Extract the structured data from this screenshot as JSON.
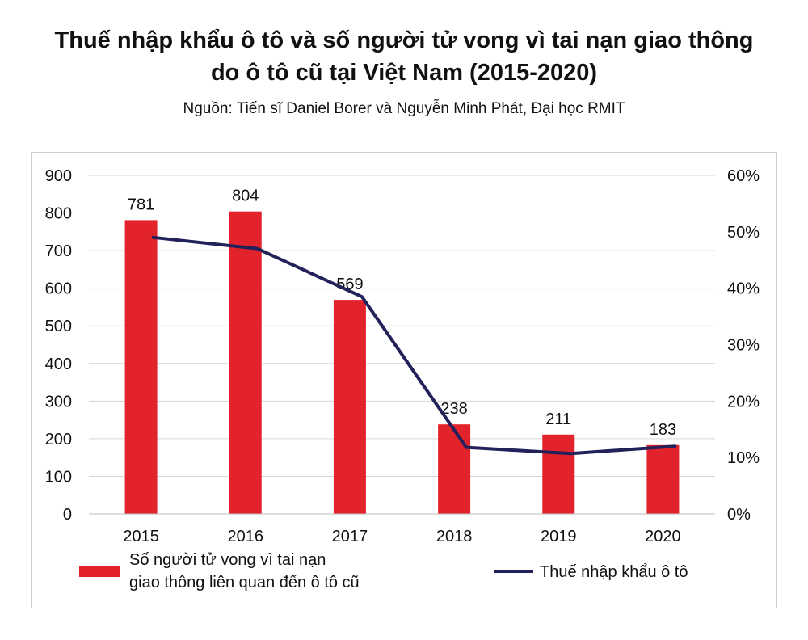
{
  "header": {
    "title_line1": "Thuế nhập khẩu ô tô và số người tử vong vì tai nạn giao thông",
    "title_line2": "do ô tô cũ tại Việt Nam (2015-2020)",
    "source": "Nguồn: Tiến sĩ Daniel Borer và Nguyễn Minh Phát, Đại học RMIT"
  },
  "chart_data": {
    "type": "bar",
    "categories": [
      "2015",
      "2016",
      "2017",
      "2018",
      "2019",
      "2020"
    ],
    "series": [
      {
        "name": "Số người tử vong vì tai nạn giao thông liên quan đến ô tô cũ",
        "legend_lines": [
          "Số người tử vong vì tai nạn",
          "giao thông liên quan đến ô tô cũ"
        ],
        "type": "bar",
        "axis": "left",
        "color": "#e3232c",
        "values": [
          781,
          804,
          569,
          238,
          211,
          183
        ],
        "labels": [
          "781",
          "804",
          "569",
          "238",
          "211",
          "183"
        ]
      },
      {
        "name": "Thuế nhập khẩu ô tô",
        "type": "line",
        "axis": "right",
        "color": "#22215a",
        "values": [
          49,
          47,
          38.5,
          11.8,
          10.7,
          12
        ]
      }
    ],
    "y_left": {
      "lim": [
        0,
        900
      ],
      "ticks": [
        "0",
        "100",
        "200",
        "300",
        "400",
        "500",
        "600",
        "700",
        "800",
        "900"
      ]
    },
    "y_right": {
      "lim": [
        0,
        60
      ],
      "ticks": [
        "0%",
        "10%",
        "20%",
        "30%",
        "40%",
        "50%",
        "60%"
      ]
    },
    "grid": true,
    "legend": "bottom"
  }
}
